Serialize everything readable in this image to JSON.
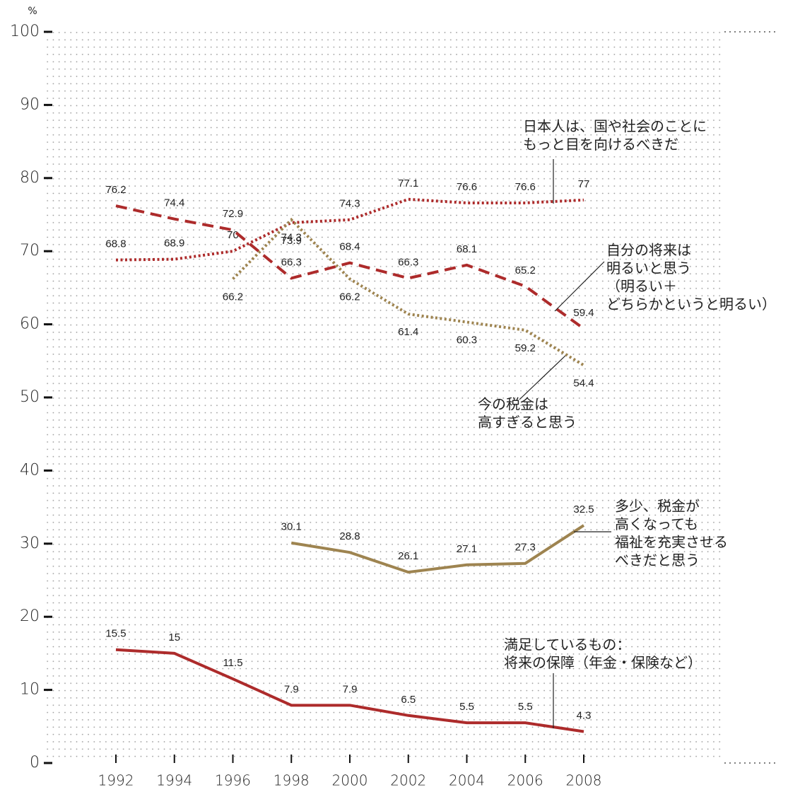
{
  "chart_data": {
    "type": "line",
    "y_unit": "%",
    "x": [
      1992,
      1994,
      1996,
      1998,
      2000,
      2002,
      2004,
      2006,
      2008
    ],
    "xlim": [
      1992,
      2008
    ],
    "xticks": [
      1992,
      1994,
      1996,
      1998,
      2000,
      2002,
      2004,
      2006,
      2008
    ],
    "ylim": [
      0,
      100
    ],
    "yticks": [
      0,
      10,
      20,
      30,
      40,
      50,
      60,
      70,
      80,
      90,
      100
    ],
    "grid": true,
    "series": [
      {
        "name": [
          "日本人は、国や社会のことに",
          "もっと目を向けるべきだ"
        ],
        "color": "#ad2b2b",
        "style": "dotted",
        "values": [
          68.8,
          68.9,
          70.0,
          73.9,
          74.3,
          77.1,
          76.6,
          76.6,
          77.0
        ]
      },
      {
        "name": [
          "自分の将来は",
          "明るいと思う",
          "（明るい＋",
          "どちらかというと明るい）"
        ],
        "color": "#ad2b2b",
        "style": "dashed",
        "values": [
          76.2,
          74.4,
          72.9,
          66.3,
          68.4,
          66.3,
          68.1,
          65.2,
          59.4
        ]
      },
      {
        "name": [
          "今の税金は",
          "高すぎると思う"
        ],
        "color": "#9e8450",
        "style": "dotted",
        "values": [
          null,
          null,
          66.2,
          74.3,
          66.2,
          61.4,
          60.3,
          59.2,
          54.4
        ]
      },
      {
        "name": [
          "多少、税金が",
          "高くなっても",
          "福祉を充実させる",
          "べきだと思う"
        ],
        "color": "#9e8450",
        "style": "solid",
        "values": [
          null,
          null,
          null,
          30.1,
          28.8,
          26.1,
          27.1,
          27.3,
          32.5
        ]
      },
      {
        "name": [
          "満足しているもの：",
          "将来の保障（年金・保険など）"
        ],
        "color": "#ad2b2b",
        "style": "solid",
        "values": [
          15.5,
          15.0,
          11.5,
          7.9,
          7.9,
          6.5,
          5.5,
          5.5,
          4.3
        ]
      }
    ]
  }
}
